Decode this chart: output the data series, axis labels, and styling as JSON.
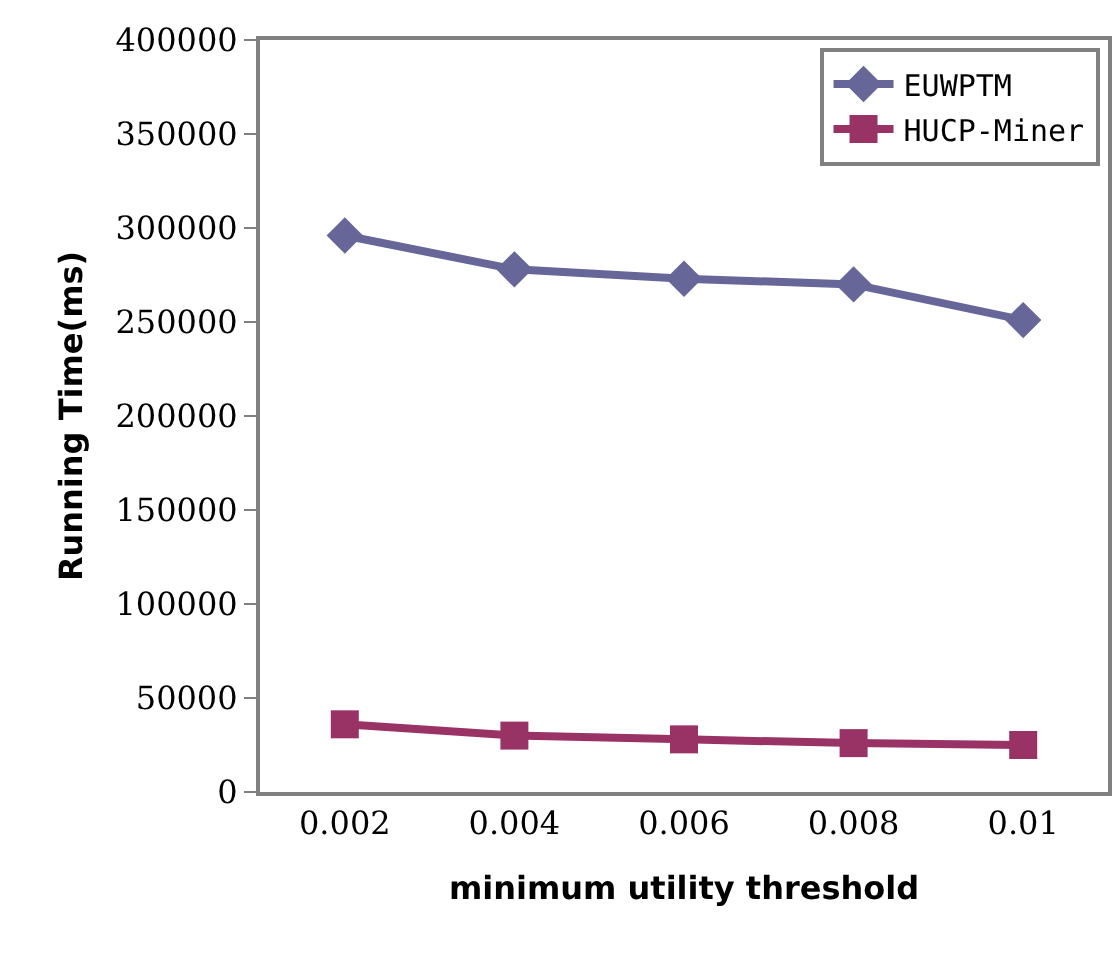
{
  "chart_data": {
    "type": "line",
    "xlabel": "minimum utility threshold",
    "ylabel": "Running Time(ms)",
    "categories": [
      "0.002",
      "0.004",
      "0.006",
      "0.008",
      "0.01"
    ],
    "series": [
      {
        "name": "EUWPTM",
        "color": "#666699",
        "marker": "diamond",
        "values": [
          296000,
          278000,
          273000,
          270000,
          251000
        ]
      },
      {
        "name": "HUCP-Miner",
        "color": "#993366",
        "marker": "square",
        "values": [
          36000,
          30000,
          28000,
          26000,
          25000
        ]
      }
    ],
    "ylim": [
      0,
      400000
    ],
    "yticks": [
      0,
      50000,
      100000,
      150000,
      200000,
      250000,
      300000,
      350000,
      400000
    ],
    "grid": false,
    "legend": "top right"
  }
}
